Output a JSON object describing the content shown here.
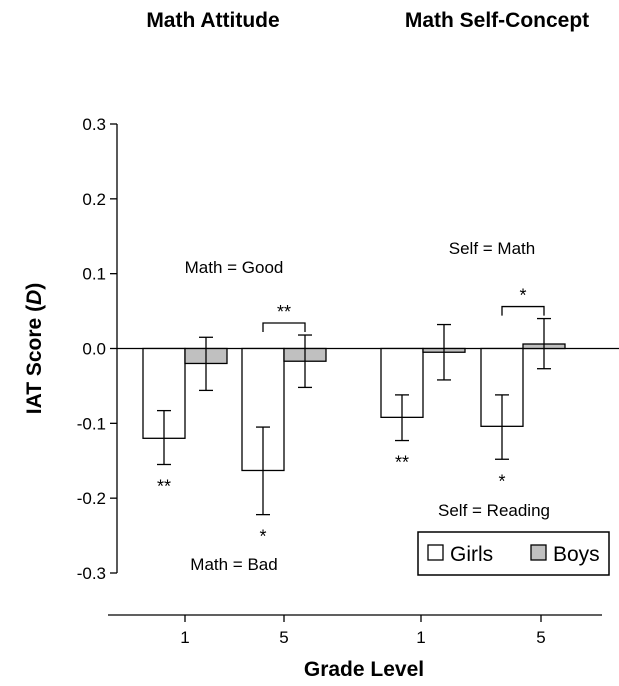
{
  "chart_data": {
    "type": "bar",
    "panels": [
      {
        "title": "Math Attitude",
        "categories": [
          "1",
          "5"
        ],
        "series": [
          {
            "name": "Girls",
            "values": [
              -0.12,
              -0.163
            ],
            "ci_low": [
              -0.155,
              -0.222
            ],
            "ci_high": [
              -0.083,
              -0.105
            ]
          },
          {
            "name": "Boys",
            "values": [
              -0.02,
              -0.017
            ],
            "ci_low": [
              -0.056,
              -0.052
            ],
            "ci_high": [
              0.015,
              0.018
            ]
          }
        ],
        "bar_stars": [
          [
            "**",
            "*"
          ],
          [
            "",
            ""
          ]
        ],
        "comparison_stars": [
          "",
          "**"
        ],
        "annotation_top": "Math = Good",
        "annotation_bottom": "Math = Bad"
      },
      {
        "title": "Math Self-Concept",
        "categories": [
          "1",
          "5"
        ],
        "series": [
          {
            "name": "Girls",
            "values": [
              -0.092,
              -0.104
            ],
            "ci_low": [
              -0.123,
              -0.148
            ],
            "ci_high": [
              -0.062,
              -0.062
            ]
          },
          {
            "name": "Boys",
            "values": [
              -0.005,
              0.006
            ],
            "ci_low": [
              -0.042,
              -0.027
            ],
            "ci_high": [
              0.032,
              0.04
            ]
          }
        ],
        "bar_stars": [
          [
            "**",
            "*"
          ],
          [
            "",
            ""
          ]
        ],
        "comparison_stars": [
          "",
          "*"
        ],
        "annotation_top": "Self = Math",
        "annotation_bottom": "Self = Reading"
      }
    ],
    "ylabel_prefix": "IAT Score (",
    "ylabel_italic": "D",
    "ylabel_suffix": ")",
    "xlabel": "Grade Level",
    "ylim": [
      -0.3,
      0.3
    ],
    "yticks": [
      0.3,
      0.2,
      0.1,
      0.0,
      -0.1,
      -0.2,
      -0.3
    ],
    "ytick_labels": [
      "0.3",
      "0.2",
      "0.1",
      "0.0",
      "-0.1",
      "-0.2",
      "-0.3"
    ],
    "legend": {
      "position": "bottom-right",
      "entries": [
        "Girls",
        "Boys"
      ]
    },
    "colors": {
      "girls": "#ffffff",
      "boys": "#c0c0c0",
      "stroke": "#000000"
    },
    "grid": false
  }
}
